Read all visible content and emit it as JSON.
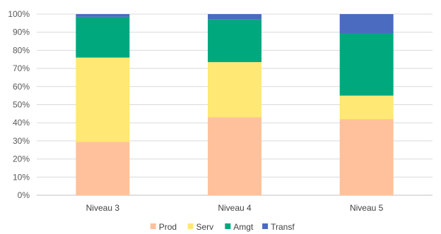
{
  "chart_data": {
    "type": "bar",
    "stacked": true,
    "categories": [
      "Niveau 3",
      "Niveau 4",
      "Niveau 5"
    ],
    "series": [
      {
        "name": "Prod",
        "color": "#ffc19b",
        "values": [
          29.5,
          43.0,
          42.0
        ]
      },
      {
        "name": "Serv",
        "color": "#ffe873",
        "values": [
          46.5,
          30.5,
          13.0
        ]
      },
      {
        "name": "Amgt",
        "color": "#00a87e",
        "values": [
          22.5,
          23.5,
          34.5
        ]
      },
      {
        "name": "Transf",
        "color": "#4a6bc0",
        "values": [
          1.5,
          3.0,
          10.5
        ]
      }
    ],
    "ylim": [
      0,
      100
    ],
    "y_ticks": [
      "0%",
      "10%",
      "20%",
      "30%",
      "40%",
      "50%",
      "60%",
      "70%",
      "80%",
      "90%",
      "100%"
    ],
    "grid": true,
    "legend_position": "bottom"
  }
}
